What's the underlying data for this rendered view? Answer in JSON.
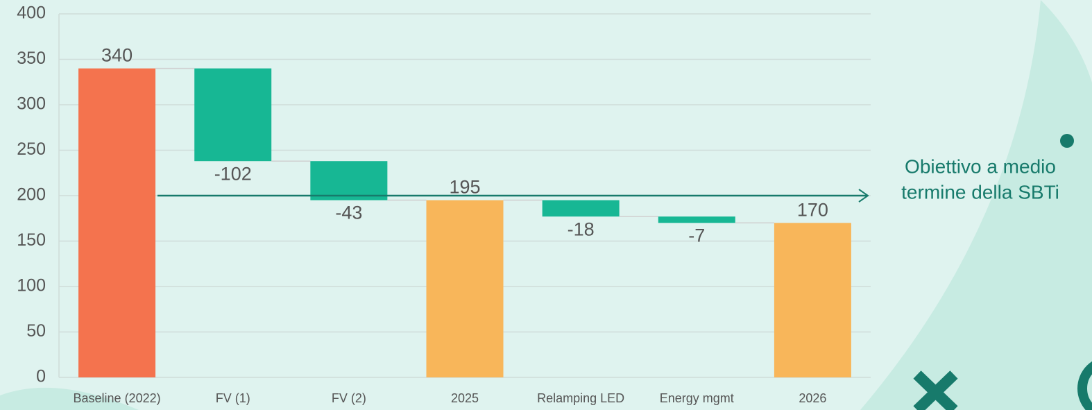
{
  "chart_data": {
    "type": "waterfall",
    "categories": [
      "Baseline (2022)",
      "FV (1)",
      "FV (2)",
      "2025",
      "Relamping LED",
      "Energy mgmt",
      "2026"
    ],
    "values": [
      340,
      -102,
      -43,
      195,
      -18,
      -7,
      170
    ],
    "totals": [
      true,
      false,
      false,
      true,
      false,
      false,
      true
    ],
    "colors": [
      "#f4734e",
      "#17b794",
      "#17b794",
      "#f8b65a",
      "#17b794",
      "#17b794",
      "#f8b65a"
    ],
    "ylim": [
      0,
      400
    ],
    "yticks": [
      0,
      50,
      100,
      150,
      200,
      250,
      300,
      350,
      400
    ],
    "grid": true,
    "target": {
      "value": 200,
      "color": "#177a6b",
      "label": [
        "Obiettivo a medio",
        "termine della SBTi"
      ]
    }
  }
}
